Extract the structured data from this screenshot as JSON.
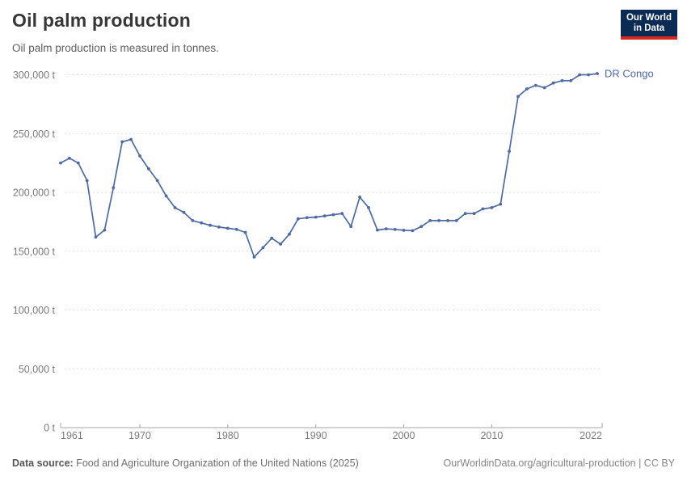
{
  "chart_data": {
    "type": "line",
    "title": "Oil palm production",
    "subtitle": "Oil palm production is measured in tonnes.",
    "unit": "tonnes",
    "xlim": [
      1961,
      2022
    ],
    "ylim": [
      0,
      300000
    ],
    "grid": "horizontal-dashed",
    "legend_position": "end-of-line-label",
    "x_ticks": [
      {
        "year": 1961,
        "label": "1961"
      },
      {
        "year": 1970,
        "label": "1970"
      },
      {
        "year": 1980,
        "label": "1980"
      },
      {
        "year": 1990,
        "label": "1990"
      },
      {
        "year": 2000,
        "label": "2000"
      },
      {
        "year": 2010,
        "label": "2010"
      },
      {
        "year": 2022,
        "label": "2022"
      }
    ],
    "y_ticks": [
      {
        "value": 0,
        "label": "0 t"
      },
      {
        "value": 50000,
        "label": "50,000 t"
      },
      {
        "value": 100000,
        "label": "100,000 t"
      },
      {
        "value": 150000,
        "label": "150,000 t"
      },
      {
        "value": 200000,
        "label": "200,000 t"
      },
      {
        "value": 250000,
        "label": "250,000 t"
      },
      {
        "value": 300000,
        "label": "300,000 t"
      }
    ],
    "series": [
      {
        "name": "DR Congo",
        "color": "#4d6aa5",
        "years": [
          1961,
          1962,
          1963,
          1964,
          1965,
          1966,
          1967,
          1968,
          1969,
          1970,
          1971,
          1972,
          1973,
          1974,
          1975,
          1976,
          1977,
          1978,
          1979,
          1980,
          1981,
          1982,
          1983,
          1984,
          1985,
          1986,
          1987,
          1988,
          1989,
          1990,
          1991,
          1992,
          1993,
          1994,
          1995,
          1996,
          1997,
          1998,
          1999,
          2000,
          2001,
          2002,
          2003,
          2004,
          2005,
          2006,
          2007,
          2008,
          2009,
          2010,
          2011,
          2012,
          2013,
          2014,
          2015,
          2016,
          2017,
          2018,
          2019,
          2020,
          2021,
          2022
        ],
        "values": [
          225000,
          229000,
          225000,
          210000,
          162000,
          168000,
          204000,
          243000,
          245000,
          231000,
          220000,
          210000,
          197000,
          187000,
          183000,
          176000,
          174000,
          172000,
          170500,
          169500,
          168500,
          166000,
          145000,
          153000,
          161000,
          156000,
          164500,
          177500,
          178500,
          179000,
          180000,
          181000,
          182000,
          171000,
          196000,
          187000,
          168000,
          169000,
          168500,
          167800,
          167400,
          171000,
          176000,
          176000,
          176000,
          176000,
          182000,
          182000,
          186000,
          187000,
          190000,
          235000,
          281500,
          288000,
          291000,
          289000,
          293000,
          295000,
          295000,
          300000,
          300000,
          301000
        ]
      }
    ]
  },
  "header": {
    "logo": {
      "line1": "Our World",
      "line2": "in Data"
    }
  },
  "footer": {
    "source_label": "Data source:",
    "source_text": "Food and Agriculture Organization of the United Nations (2025)",
    "credit": "OurWorldinData.org/agricultural-production | CC BY"
  },
  "colors": {
    "line": "#4d6aa5",
    "entity_label": "#4d6aa5",
    "gridline": "#e0e0e0",
    "axis": "#a5a5a5",
    "tick_label": "#7a7a7a",
    "logo_bg": "#0b2b55",
    "logo_accent": "#d8271f"
  }
}
